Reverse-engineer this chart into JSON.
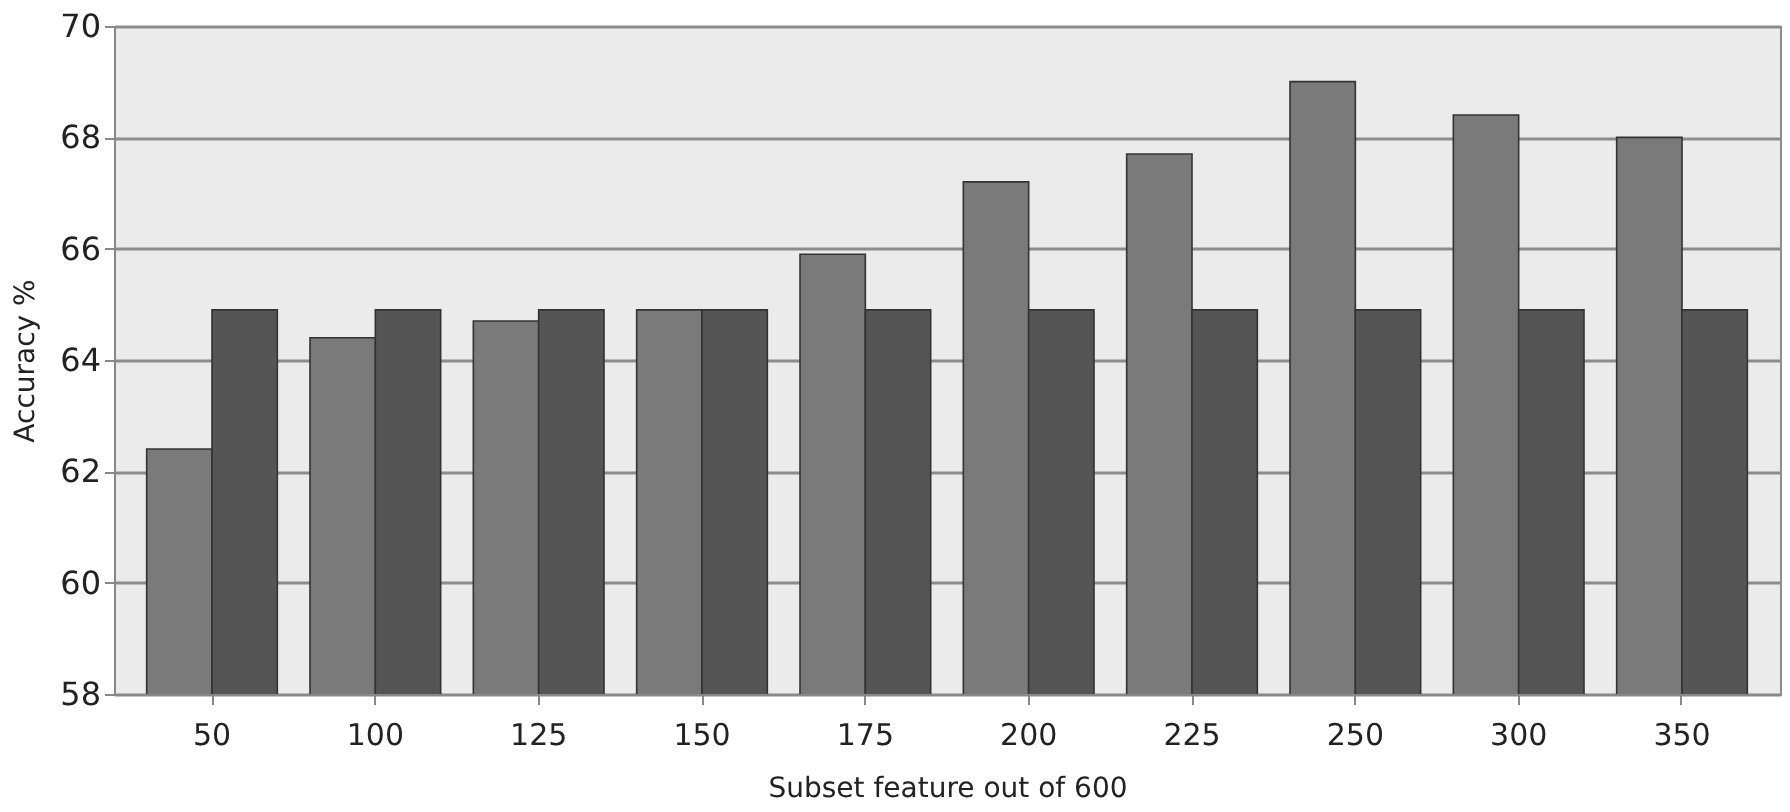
{
  "chart_data": {
    "type": "bar",
    "xlabel": "Subset feature out of 600",
    "ylabel": "Accuracy %",
    "categories": [
      "50",
      "100",
      "125",
      "150",
      "175",
      "200",
      "225",
      "250",
      "300",
      "350"
    ],
    "series": [
      {
        "color": "#7a7a7a",
        "values": [
          62.4,
          64.4,
          64.7,
          64.9,
          65.9,
          67.2,
          67.7,
          69.0,
          68.4,
          68.0
        ]
      },
      {
        "color": "#555555",
        "values": [
          64.9,
          64.9,
          64.9,
          64.9,
          64.9,
          64.9,
          64.9,
          64.9,
          64.9,
          64.9
        ]
      }
    ],
    "ylim": [
      58,
      70
    ],
    "yticks": [
      58,
      60,
      62,
      64,
      66,
      68,
      70
    ],
    "grid": "y"
  }
}
